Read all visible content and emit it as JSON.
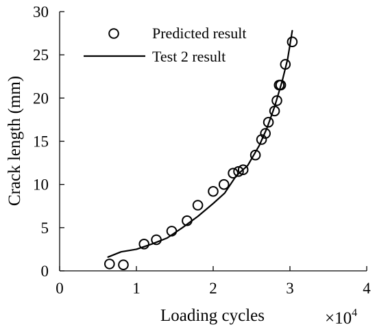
{
  "chart_data": {
    "type": "scatter",
    "xlabel": "Loading cycles",
    "ylabel": "Crack length (mm)",
    "x_exponent_label": "×10",
    "x_exponent_power": "4",
    "xlim": [
      0,
      4
    ],
    "ylim": [
      0,
      30
    ],
    "x_ticks": [
      0,
      1,
      2,
      3,
      4
    ],
    "x_tick_labels": [
      "0",
      "1",
      "2",
      "3",
      "4"
    ],
    "y_ticks": [
      0,
      5,
      10,
      15,
      20,
      25,
      30
    ],
    "y_tick_labels": [
      "0",
      "5",
      "10",
      "15",
      "20",
      "25",
      "30"
    ],
    "grid": false,
    "legend_position": "top-left",
    "series": [
      {
        "name": "Predicted result",
        "style": "markers",
        "marker": "circle",
        "color": "#000000",
        "x": [
          0.65,
          0.83,
          1.1,
          1.26,
          1.46,
          1.66,
          1.8,
          2.0,
          2.14,
          2.26,
          2.33,
          2.39,
          2.55,
          2.63,
          2.68,
          2.72,
          2.8,
          2.83,
          2.86,
          2.88,
          2.94,
          3.03
        ],
        "y": [
          0.8,
          0.7,
          3.1,
          3.6,
          4.6,
          5.8,
          7.6,
          9.2,
          10.0,
          11.3,
          11.5,
          11.7,
          13.4,
          15.2,
          15.9,
          17.2,
          18.5,
          19.7,
          21.5,
          21.5,
          23.9,
          26.5
        ]
      },
      {
        "name": "Test 2 result",
        "style": "line",
        "color": "#000000",
        "x": [
          0.63,
          0.8,
          1.0,
          1.2,
          1.4,
          1.6,
          1.8,
          2.0,
          2.15,
          2.3,
          2.45,
          2.6,
          2.7,
          2.8,
          2.9,
          2.97,
          3.03
        ],
        "y": [
          1.6,
          2.2,
          2.5,
          3.1,
          3.8,
          5.0,
          6.3,
          7.8,
          9.0,
          11.0,
          12.2,
          14.5,
          16.5,
          19.0,
          22.0,
          24.5,
          27.8
        ]
      }
    ]
  }
}
